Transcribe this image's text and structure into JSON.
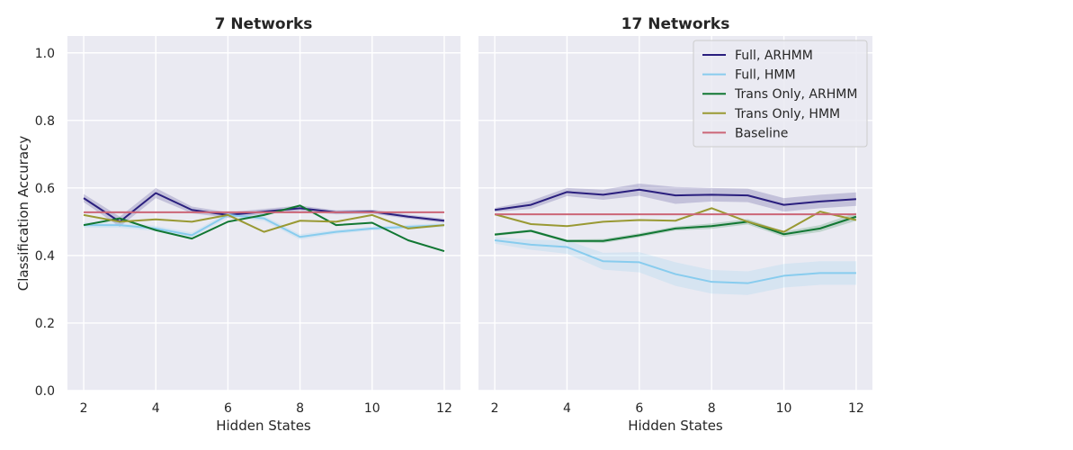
{
  "chart_data": [
    {
      "type": "line",
      "title": "7 Networks",
      "xlabel": "Hidden States",
      "ylabel": "Classification Accuracy",
      "xlim": [
        1.55,
        12.45
      ],
      "ylim": [
        0.0,
        1.05
      ],
      "xticks": [
        2,
        4,
        6,
        8,
        10,
        12
      ],
      "yticks": [
        0.0,
        0.2,
        0.4,
        0.6,
        0.8,
        1.0
      ],
      "grid": true,
      "x": [
        2,
        3,
        4,
        5,
        6,
        7,
        8,
        9,
        10,
        11,
        12
      ],
      "series": [
        {
          "name": "Full, ARHMM",
          "color": "#2a1f7e",
          "values": [
            0.57,
            0.5,
            0.585,
            0.535,
            0.52,
            0.53,
            0.54,
            0.528,
            0.53,
            0.515,
            0.503
          ],
          "band": [
            0.012,
            0.015,
            0.015,
            0.01,
            0.008,
            0.008,
            0.008,
            0.006,
            0.006,
            0.006,
            0.006
          ]
        },
        {
          "name": "Full, HMM",
          "color": "#88ccee",
          "values": [
            0.49,
            0.49,
            0.48,
            0.46,
            0.52,
            0.51,
            0.455,
            0.47,
            0.48,
            0.485,
            0.49
          ],
          "band": [
            0.008,
            0.008,
            0.008,
            0.008,
            0.008,
            0.008,
            0.008,
            0.006,
            0.006,
            0.006,
            0.006
          ]
        },
        {
          "name": "Trans Only, ARHMM",
          "color": "#117733",
          "values": [
            0.49,
            0.51,
            0.475,
            0.45,
            0.5,
            0.52,
            0.548,
            0.49,
            0.497,
            0.445,
            0.413
          ],
          "band": [
            0,
            0,
            0,
            0,
            0,
            0,
            0,
            0,
            0,
            0,
            0
          ]
        },
        {
          "name": "Trans Only, HMM",
          "color": "#999933",
          "values": [
            0.52,
            0.5,
            0.507,
            0.5,
            0.52,
            0.47,
            0.503,
            0.5,
            0.52,
            0.48,
            0.49
          ],
          "band": [
            0,
            0,
            0,
            0,
            0,
            0,
            0,
            0,
            0,
            0,
            0
          ]
        },
        {
          "name": "Baseline",
          "color": "#cc6677",
          "values": [
            0.528,
            0.528,
            0.528,
            0.528,
            0.528,
            0.528,
            0.528,
            0.528,
            0.528,
            0.528,
            0.528
          ],
          "band": [
            0,
            0,
            0,
            0,
            0,
            0,
            0,
            0,
            0,
            0,
            0
          ]
        }
      ]
    },
    {
      "type": "line",
      "title": "17 Networks",
      "xlabel": "Hidden States",
      "ylabel": "",
      "xlim": [
        1.55,
        12.45
      ],
      "ylim": [
        0.0,
        1.05
      ],
      "xticks": [
        2,
        4,
        6,
        8,
        10,
        12
      ],
      "yticks": [
        0.0,
        0.2,
        0.4,
        0.6,
        0.8,
        1.0
      ],
      "grid": true,
      "legend": "top-right",
      "x": [
        2,
        3,
        4,
        5,
        6,
        7,
        8,
        9,
        10,
        11,
        12
      ],
      "series": [
        {
          "name": "Full, ARHMM",
          "color": "#2a1f7e",
          "values": [
            0.535,
            0.55,
            0.588,
            0.58,
            0.595,
            0.578,
            0.58,
            0.578,
            0.55,
            0.56,
            0.567
          ],
          "band": [
            0.006,
            0.012,
            0.012,
            0.015,
            0.018,
            0.025,
            0.02,
            0.02,
            0.02,
            0.02,
            0.02
          ]
        },
        {
          "name": "Full, HMM",
          "color": "#88ccee",
          "values": [
            0.445,
            0.432,
            0.425,
            0.383,
            0.38,
            0.345,
            0.322,
            0.318,
            0.34,
            0.348,
            0.348
          ],
          "band": [
            0.01,
            0.015,
            0.02,
            0.025,
            0.03,
            0.035,
            0.035,
            0.035,
            0.035,
            0.035,
            0.035
          ]
        },
        {
          "name": "Trans Only, ARHMM",
          "color": "#117733",
          "values": [
            0.462,
            0.473,
            0.443,
            0.443,
            0.46,
            0.48,
            0.487,
            0.5,
            0.463,
            0.48,
            0.515
          ],
          "band": [
            0.004,
            0.004,
            0.004,
            0.006,
            0.006,
            0.006,
            0.008,
            0.008,
            0.008,
            0.01,
            0.012
          ]
        },
        {
          "name": "Trans Only, HMM",
          "color": "#999933",
          "values": [
            0.522,
            0.493,
            0.487,
            0.5,
            0.505,
            0.503,
            0.54,
            0.5,
            0.47,
            0.53,
            0.505
          ],
          "band": [
            0,
            0,
            0,
            0,
            0,
            0,
            0,
            0,
            0,
            0,
            0
          ]
        },
        {
          "name": "Baseline",
          "color": "#cc6677",
          "values": [
            0.522,
            0.522,
            0.522,
            0.522,
            0.522,
            0.522,
            0.522,
            0.522,
            0.522,
            0.522,
            0.522
          ],
          "band": [
            0,
            0,
            0,
            0,
            0,
            0,
            0,
            0,
            0,
            0,
            0
          ]
        }
      ]
    }
  ]
}
